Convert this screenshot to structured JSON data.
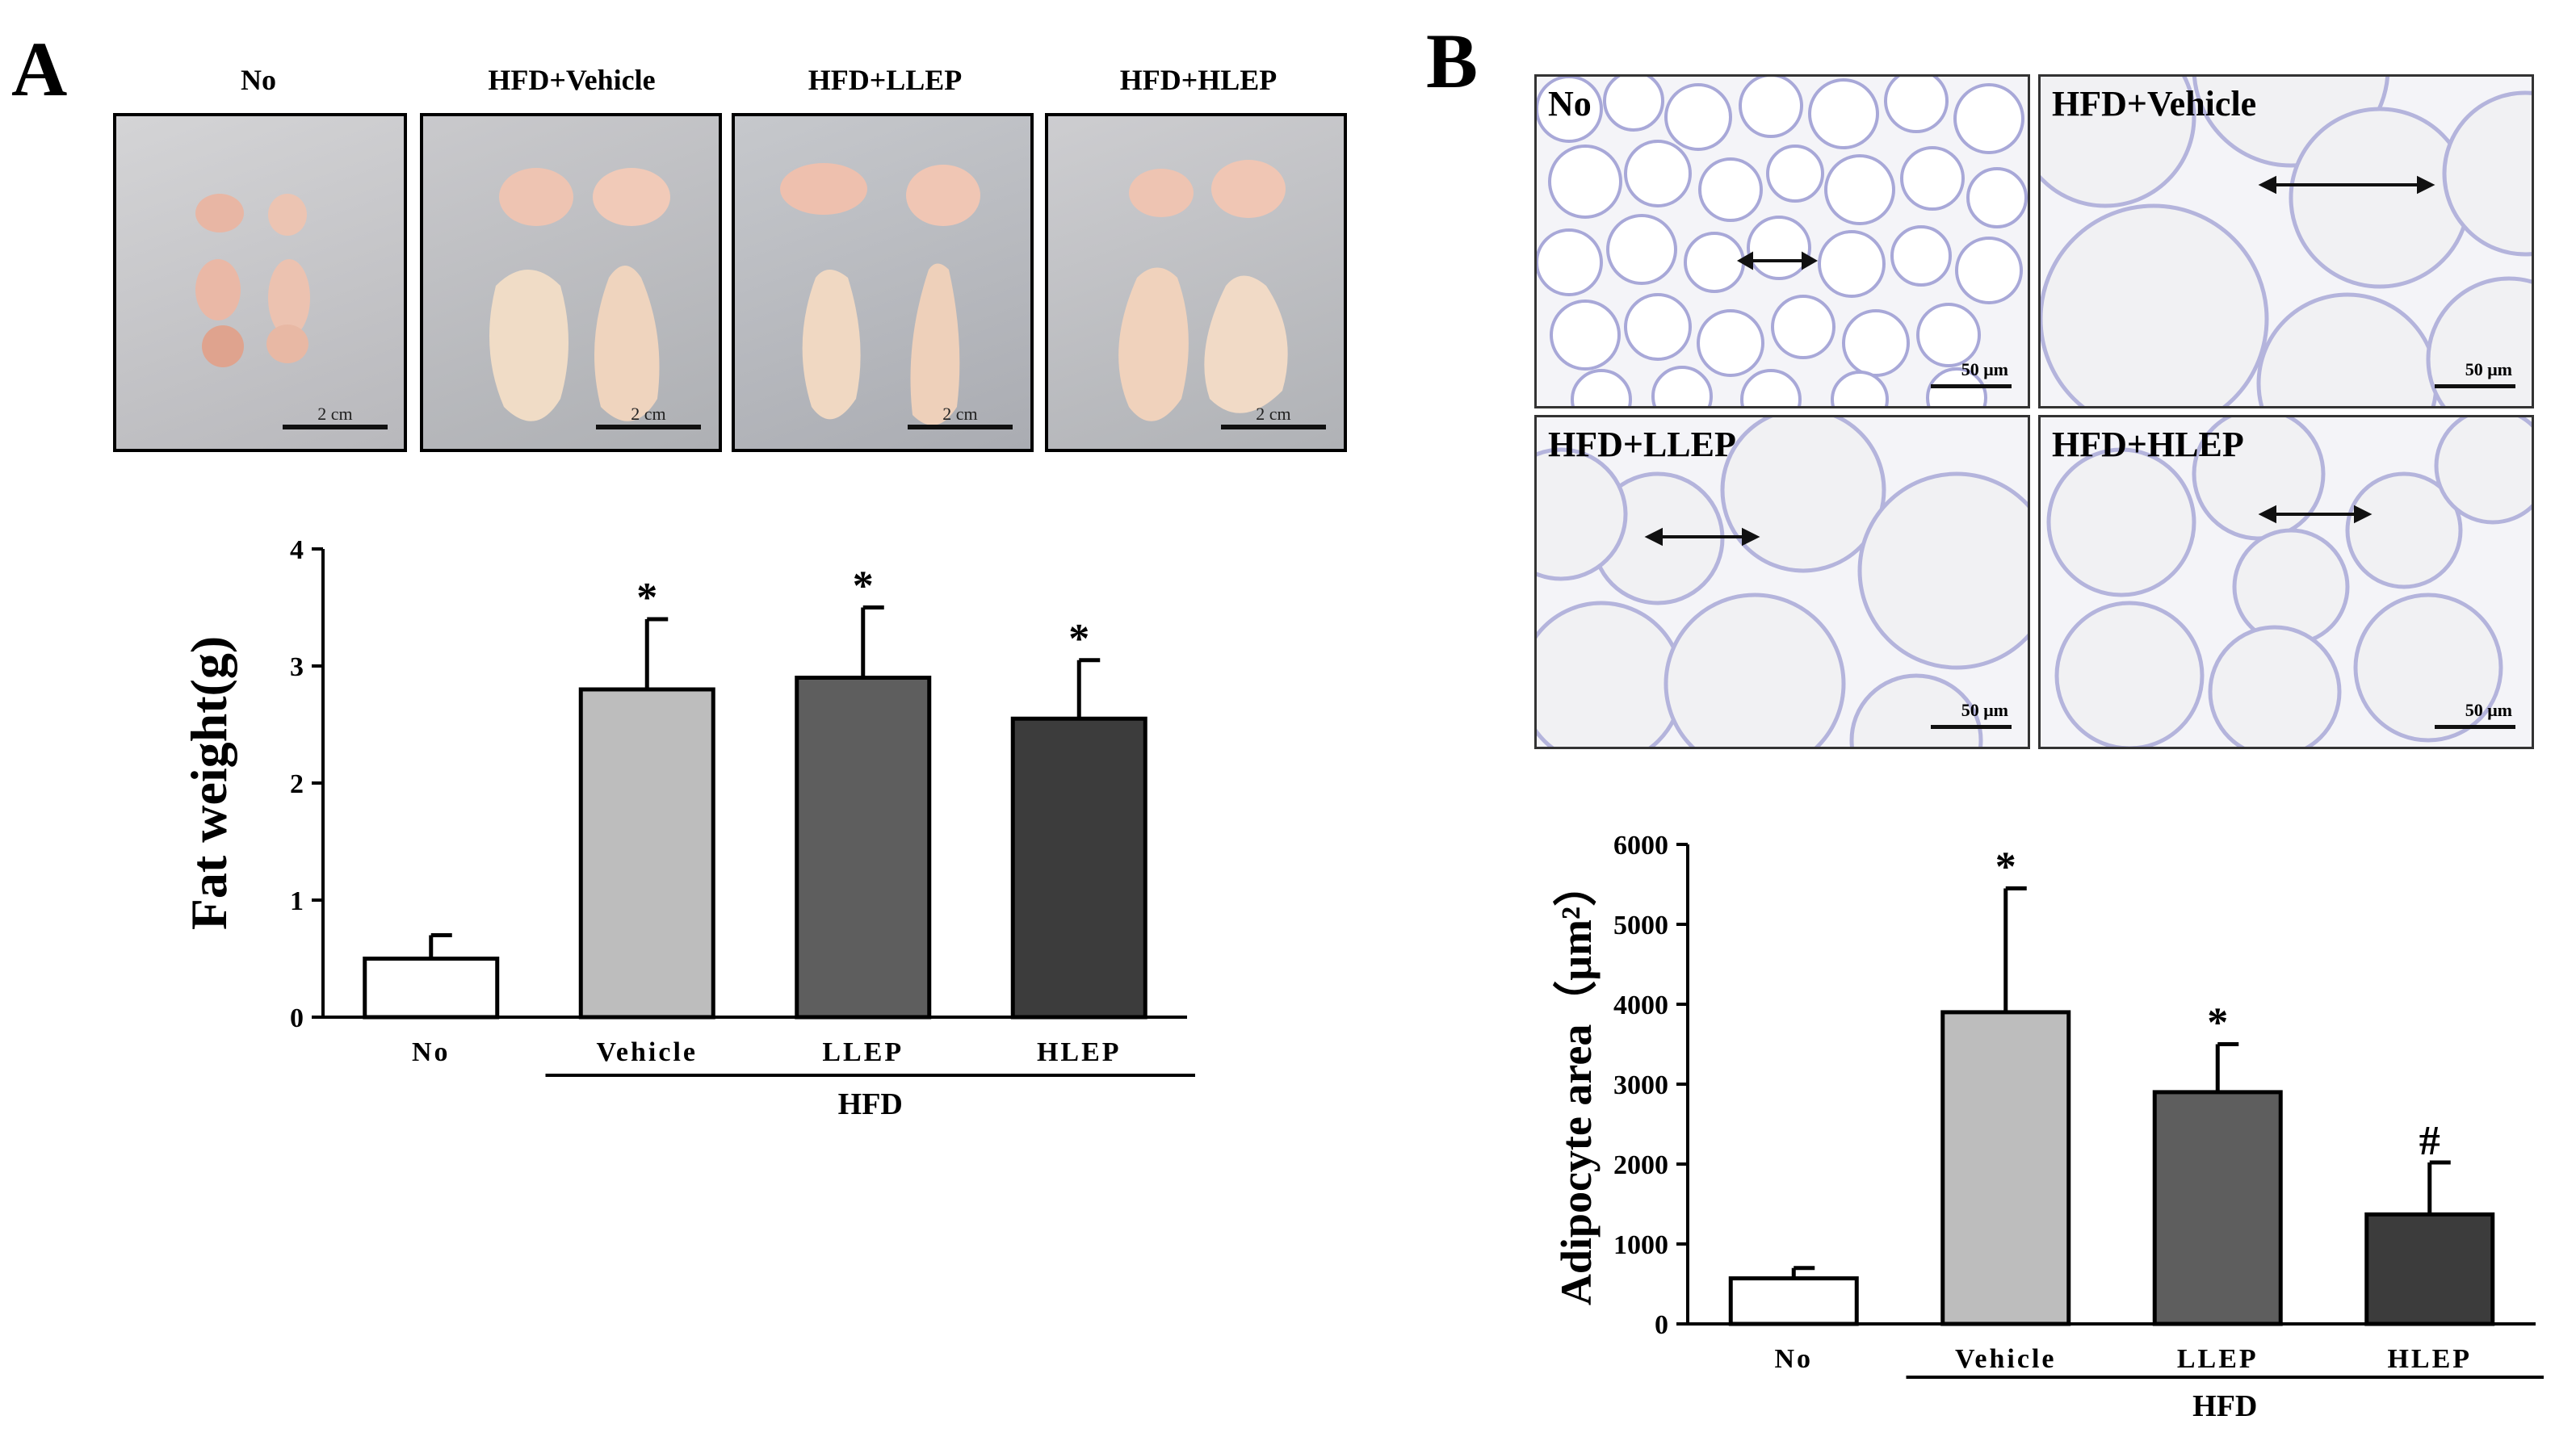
{
  "panelA": {
    "letter": "A",
    "photos": [
      {
        "label": "No",
        "scale": "2 cm"
      },
      {
        "label": "HFD+Vehicle",
        "scale": "2 cm"
      },
      {
        "label": "HFD+LLEP",
        "scale": "2 cm"
      },
      {
        "label": "HFD+HLEP",
        "scale": "2 cm"
      }
    ]
  },
  "panelB": {
    "letter": "B",
    "histology": [
      {
        "label": "No",
        "scale": "50 μm"
      },
      {
        "label": "HFD+Vehicle",
        "scale": "50 μm"
      },
      {
        "label": "HFD+LLEP",
        "scale": "50 μm"
      },
      {
        "label": "HFD+HLEP",
        "scale": "50 μm"
      }
    ]
  },
  "colors": {
    "no": "#ffffff",
    "vehicle": "#bdbdbd",
    "llep": "#5e5e5e",
    "hlep": "#3c3c3c"
  },
  "chart_data": [
    {
      "type": "bar",
      "categories": [
        "No",
        "Vehicle",
        "LLEP",
        "HLEP"
      ],
      "values": [
        0.5,
        2.8,
        2.9,
        2.55
      ],
      "errors": [
        0.2,
        0.6,
        0.6,
        0.5
      ],
      "markers": [
        "",
        "*",
        "*",
        "*"
      ],
      "ylabel": "Fat weight(g)",
      "ylim": [
        0,
        4
      ],
      "yticks": [
        "0",
        "1",
        "2",
        "3",
        "4"
      ],
      "group_label": "HFD"
    },
    {
      "type": "bar",
      "categories": [
        "No",
        "Vehicle",
        "LLEP",
        "HLEP"
      ],
      "values": [
        570,
        3900,
        2900,
        1370
      ],
      "errors": [
        130,
        1550,
        600,
        650
      ],
      "markers": [
        "",
        "*",
        "*",
        "#"
      ],
      "ylabel": "Adipocyte area（μm²）",
      "ylim": [
        0,
        6000
      ],
      "yticks": [
        "0",
        "1000",
        "2000",
        "3000",
        "4000",
        "5000",
        "6000"
      ],
      "group_label": "HFD"
    }
  ]
}
